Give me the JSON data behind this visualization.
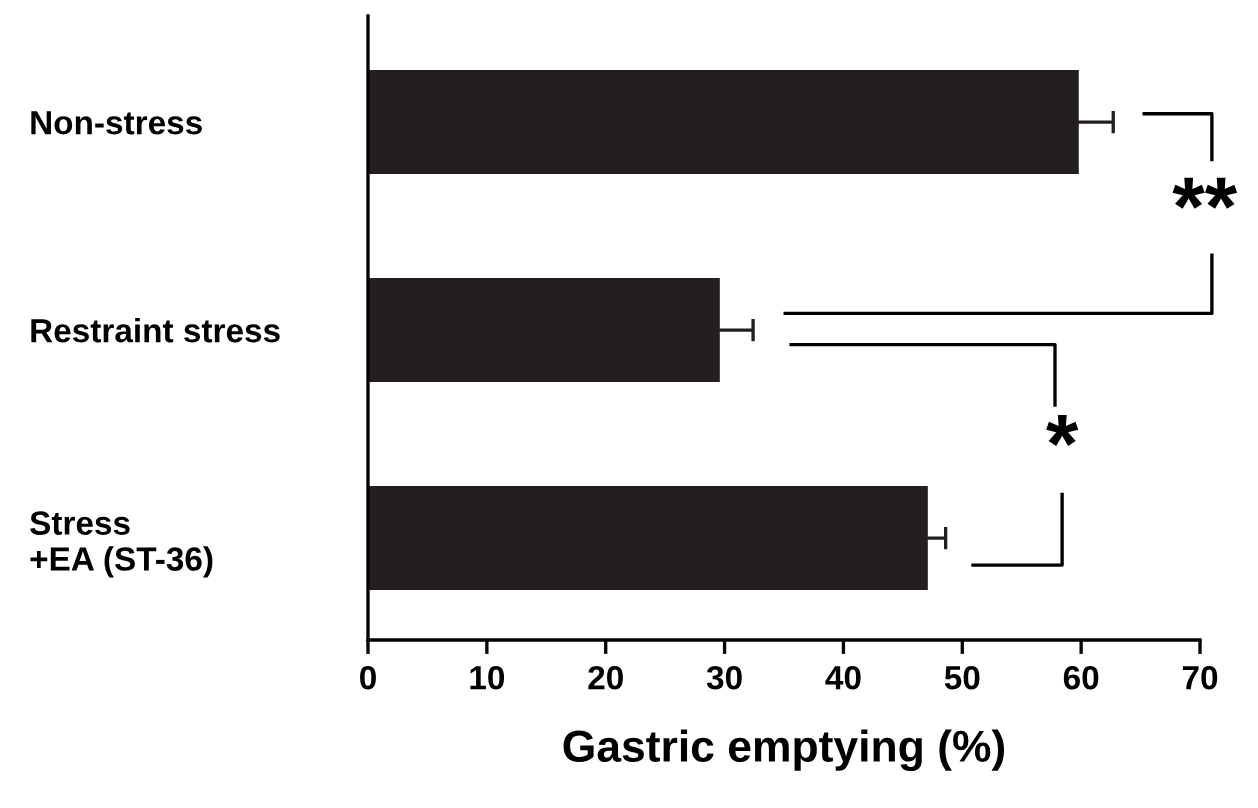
{
  "chart_data": {
    "type": "bar",
    "orientation": "horizontal",
    "categories": [
      "Non-stress",
      "Restraint stress",
      "Stress\n+EA (ST-36)"
    ],
    "values": [
      59.8,
      29.6,
      47.1
    ],
    "errors": [
      2.9,
      2.8,
      1.5
    ],
    "color": "#231f20",
    "xlabel": "Gastric emptying (%)",
    "xlim": [
      0,
      70
    ],
    "xticks": [
      0,
      10,
      20,
      30,
      40,
      50,
      60,
      70
    ],
    "annotations": [
      "**",
      "*"
    ]
  }
}
